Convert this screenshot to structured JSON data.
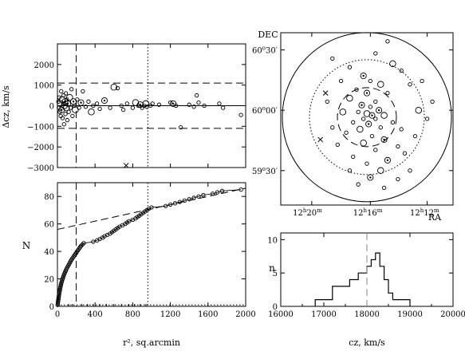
{
  "colors": {
    "ink": "#000000",
    "reference": "#888888"
  },
  "chart_data": [
    {
      "id": "velocity_offset",
      "type": "scatter",
      "xlabel": "",
      "ylabel": "Δcz, km/s",
      "xlim": [
        0,
        2000
      ],
      "ylim": [
        -3000,
        3000
      ],
      "yticks": [
        -3000,
        -2000,
        -1000,
        0,
        1000,
        2000
      ],
      "ytick_labels": [
        "−3000",
        "−2000",
        "−1000",
        "0",
        "1000",
        "2000"
      ],
      "xticks": [
        0,
        400,
        800,
        1200,
        1600,
        2000
      ],
      "hlines": [
        {
          "y": 1100,
          "style": "dashed"
        },
        {
          "y": 0,
          "style": "solid"
        },
        {
          "y": -1100,
          "style": "dashed"
        }
      ],
      "vlines": [
        {
          "x": 200,
          "style": "dashed"
        },
        {
          "x": 960,
          "style": "dotted"
        }
      ],
      "points": [
        {
          "x": 10,
          "y": 200,
          "m": "o"
        },
        {
          "x": 15,
          "y": -100,
          "m": "o"
        },
        {
          "x": 20,
          "y": 400,
          "m": "o"
        },
        {
          "x": 25,
          "y": -300,
          "m": "o"
        },
        {
          "x": 30,
          "y": 100,
          "m": "O"
        },
        {
          "x": 35,
          "y": -500,
          "m": "o"
        },
        {
          "x": 40,
          "y": 700,
          "m": "o"
        },
        {
          "x": 45,
          "y": -200,
          "m": "@"
        },
        {
          "x": 50,
          "y": 300,
          "m": "O"
        },
        {
          "x": 55,
          "y": -600,
          "m": "o"
        },
        {
          "x": 60,
          "y": 100,
          "m": "o"
        },
        {
          "x": 65,
          "y": 500,
          "m": "o"
        },
        {
          "x": 70,
          "y": -900,
          "m": "o"
        },
        {
          "x": 75,
          "y": 0,
          "m": "O"
        },
        {
          "x": 80,
          "y": 200,
          "m": "@"
        },
        {
          "x": 85,
          "y": -400,
          "m": "o"
        },
        {
          "x": 90,
          "y": 600,
          "m": "o"
        },
        {
          "x": 95,
          "y": -100,
          "m": "O"
        },
        {
          "x": 100,
          "y": 300,
          "m": "o"
        },
        {
          "x": 105,
          "y": -700,
          "m": "o"
        },
        {
          "x": 110,
          "y": 100,
          "m": "@"
        },
        {
          "x": 120,
          "y": -300,
          "m": "o"
        },
        {
          "x": 130,
          "y": 400,
          "m": "O"
        },
        {
          "x": 140,
          "y": -100,
          "m": "o"
        },
        {
          "x": 150,
          "y": 800,
          "m": "o"
        },
        {
          "x": 160,
          "y": -500,
          "m": "o"
        },
        {
          "x": 170,
          "y": 200,
          "m": "@"
        },
        {
          "x": 180,
          "y": 0,
          "m": "o"
        },
        {
          "x": 190,
          "y": -200,
          "m": "O"
        },
        {
          "x": 210,
          "y": 300,
          "m": "o"
        },
        {
          "x": 230,
          "y": -100,
          "m": "o"
        },
        {
          "x": 250,
          "y": 150,
          "m": "@"
        },
        {
          "x": 270,
          "y": 700,
          "m": "o"
        },
        {
          "x": 300,
          "y": -50,
          "m": "o"
        },
        {
          "x": 330,
          "y": 200,
          "m": "o"
        },
        {
          "x": 360,
          "y": -300,
          "m": "O"
        },
        {
          "x": 380,
          "y": 0,
          "m": "o"
        },
        {
          "x": 420,
          "y": 100,
          "m": "o"
        },
        {
          "x": 450,
          "y": -150,
          "m": "o"
        },
        {
          "x": 500,
          "y": 250,
          "m": "@"
        },
        {
          "x": 560,
          "y": -100,
          "m": "o"
        },
        {
          "x": 600,
          "y": 900,
          "m": "O"
        },
        {
          "x": 640,
          "y": 850,
          "m": "o"
        },
        {
          "x": 680,
          "y": 0,
          "m": "o"
        },
        {
          "x": 700,
          "y": -200,
          "m": "o"
        },
        {
          "x": 740,
          "y": 100,
          "m": "o"
        },
        {
          "x": 800,
          "y": -100,
          "m": "o"
        },
        {
          "x": 830,
          "y": 150,
          "m": "O"
        },
        {
          "x": 860,
          "y": 0,
          "m": "o"
        },
        {
          "x": 880,
          "y": 50,
          "m": "@"
        },
        {
          "x": 900,
          "y": -100,
          "m": "o"
        },
        {
          "x": 920,
          "y": 0,
          "m": "o"
        },
        {
          "x": 940,
          "y": 100,
          "m": "O"
        },
        {
          "x": 950,
          "y": -50,
          "m": "o"
        },
        {
          "x": 990,
          "y": 0,
          "m": "o"
        },
        {
          "x": 1010,
          "y": 100,
          "m": "o"
        },
        {
          "x": 1080,
          "y": 50,
          "m": "o"
        },
        {
          "x": 1200,
          "y": 150,
          "m": "o"
        },
        {
          "x": 1230,
          "y": 100,
          "m": "@"
        },
        {
          "x": 1260,
          "y": 0,
          "m": "o"
        },
        {
          "x": 1400,
          "y": 50,
          "m": "o"
        },
        {
          "x": 1450,
          "y": -50,
          "m": "o"
        },
        {
          "x": 1480,
          "y": 500,
          "m": "o"
        },
        {
          "x": 1500,
          "y": 150,
          "m": "o"
        },
        {
          "x": 1560,
          "y": 0,
          "m": "o"
        },
        {
          "x": 1720,
          "y": 100,
          "m": "o"
        },
        {
          "x": 1760,
          "y": -100,
          "m": "o"
        },
        {
          "x": 1950,
          "y": -450,
          "m": "o"
        },
        {
          "x": 1310,
          "y": -1050,
          "m": "o"
        },
        {
          "x": 730,
          "y": -2900,
          "m": "x"
        }
      ]
    },
    {
      "id": "sky_map",
      "type": "scatter",
      "xlabel": "RA",
      "ylabel": "DEC",
      "xtick_labels": [
        {
          "h": "12",
          "m": "20"
        },
        {
          "h": "12",
          "m": "16"
        },
        {
          "h": "12",
          "m": "12"
        }
      ],
      "ytick_labels": [
        {
          "deg": "60",
          "min": "30"
        },
        {
          "deg": "60",
          "min": "00"
        },
        {
          "deg": "59",
          "min": "30"
        }
      ],
      "rings": [
        "solid",
        "dotted",
        "dashed"
      ],
      "points": [
        {
          "x": 0.62,
          "y": 0.05,
          "m": "o"
        },
        {
          "x": 0.55,
          "y": 0.12,
          "m": "o"
        },
        {
          "x": 0.3,
          "y": 0.15,
          "m": "o"
        },
        {
          "x": 0.4,
          "y": 0.2,
          "m": "o"
        },
        {
          "x": 0.65,
          "y": 0.18,
          "m": "O"
        },
        {
          "x": 0.7,
          "y": 0.22,
          "m": "o"
        },
        {
          "x": 0.48,
          "y": 0.25,
          "m": "@"
        },
        {
          "x": 0.52,
          "y": 0.28,
          "m": "o"
        },
        {
          "x": 0.58,
          "y": 0.3,
          "m": "O"
        },
        {
          "x": 0.35,
          "y": 0.28,
          "m": "o"
        },
        {
          "x": 0.75,
          "y": 0.3,
          "m": "o"
        },
        {
          "x": 0.44,
          "y": 0.33,
          "m": "o"
        },
        {
          "x": 0.5,
          "y": 0.35,
          "m": "@"
        },
        {
          "x": 0.62,
          "y": 0.35,
          "m": "o"
        },
        {
          "x": 0.4,
          "y": 0.38,
          "m": "O"
        },
        {
          "x": 0.55,
          "y": 0.4,
          "m": "o"
        },
        {
          "x": 0.47,
          "y": 0.42,
          "m": "@"
        },
        {
          "x": 0.52,
          "y": 0.43,
          "m": "o"
        },
        {
          "x": 0.57,
          "y": 0.45,
          "m": "@"
        },
        {
          "x": 0.45,
          "y": 0.46,
          "m": "o"
        },
        {
          "x": 0.5,
          "y": 0.47,
          "m": "O"
        },
        {
          "x": 0.53,
          "y": 0.48,
          "m": "@"
        },
        {
          "x": 0.48,
          "y": 0.5,
          "m": "o"
        },
        {
          "x": 0.55,
          "y": 0.5,
          "m": "o"
        },
        {
          "x": 0.6,
          "y": 0.48,
          "m": "O"
        },
        {
          "x": 0.42,
          "y": 0.52,
          "m": "o"
        },
        {
          "x": 0.51,
          "y": 0.53,
          "m": "@"
        },
        {
          "x": 0.58,
          "y": 0.55,
          "m": "o"
        },
        {
          "x": 0.46,
          "y": 0.56,
          "m": "O"
        },
        {
          "x": 0.65,
          "y": 0.52,
          "m": "o"
        },
        {
          "x": 0.7,
          "y": 0.56,
          "m": "o"
        },
        {
          "x": 0.38,
          "y": 0.58,
          "m": "o"
        },
        {
          "x": 0.53,
          "y": 0.6,
          "m": "o"
        },
        {
          "x": 0.6,
          "y": 0.62,
          "m": "@"
        },
        {
          "x": 0.48,
          "y": 0.64,
          "m": "O"
        },
        {
          "x": 0.68,
          "y": 0.66,
          "m": "o"
        },
        {
          "x": 0.55,
          "y": 0.68,
          "m": "o"
        },
        {
          "x": 0.72,
          "y": 0.7,
          "m": "o"
        },
        {
          "x": 0.42,
          "y": 0.72,
          "m": "o"
        },
        {
          "x": 0.62,
          "y": 0.74,
          "m": "@"
        },
        {
          "x": 0.5,
          "y": 0.76,
          "m": "o"
        },
        {
          "x": 0.78,
          "y": 0.6,
          "m": "o"
        },
        {
          "x": 0.8,
          "y": 0.45,
          "m": "O"
        },
        {
          "x": 0.85,
          "y": 0.5,
          "m": "o"
        },
        {
          "x": 0.27,
          "y": 0.4,
          "m": "o"
        },
        {
          "x": 0.3,
          "y": 0.55,
          "m": "o"
        },
        {
          "x": 0.33,
          "y": 0.65,
          "m": "o"
        },
        {
          "x": 0.58,
          "y": 0.8,
          "m": "O"
        },
        {
          "x": 0.52,
          "y": 0.84,
          "m": "@"
        },
        {
          "x": 0.45,
          "y": 0.88,
          "m": "o"
        },
        {
          "x": 0.75,
          "y": 0.8,
          "m": "o"
        },
        {
          "x": 0.68,
          "y": 0.85,
          "m": "o"
        },
        {
          "x": 0.6,
          "y": 0.9,
          "m": "o"
        },
        {
          "x": 0.4,
          "y": 0.8,
          "m": "o"
        },
        {
          "x": 0.88,
          "y": 0.4,
          "m": "o"
        },
        {
          "x": 0.82,
          "y": 0.28,
          "m": "o"
        },
        {
          "x": 0.36,
          "y": 0.46,
          "m": "O"
        },
        {
          "x": 0.26,
          "y": 0.35,
          "m": "x"
        },
        {
          "x": 0.23,
          "y": 0.62,
          "m": "x"
        }
      ]
    },
    {
      "id": "cumulative_counts",
      "type": "scatter",
      "xlabel": "r², sq.arcmin",
      "ylabel": "N",
      "xlim": [
        0,
        2000
      ],
      "ylim": [
        0,
        90
      ],
      "xticks": [
        0,
        400,
        800,
        1200,
        1600,
        2000
      ],
      "yticks": [
        0,
        20,
        40,
        60,
        80
      ],
      "fit_line": {
        "x": [
          0,
          2000
        ],
        "y": [
          56,
          86
        ],
        "style": "dashed"
      },
      "vlines": [
        {
          "x": 200,
          "style": "dashed"
        },
        {
          "x": 960,
          "style": "dotted"
        }
      ],
      "baseline": {
        "y": 1,
        "style": "dotted"
      },
      "cumulative_x": [
        2,
        4,
        6,
        8,
        10,
        12,
        14,
        16,
        18,
        20,
        23,
        26,
        29,
        32,
        35,
        38,
        42,
        46,
        50,
        55,
        60,
        65,
        70,
        76,
        82,
        88,
        95,
        102,
        110,
        118,
        126,
        134,
        142,
        150,
        160,
        170,
        180,
        190,
        200,
        210,
        220,
        230,
        240,
        250,
        265,
        280,
        380,
        420,
        450,
        480,
        500,
        530,
        560,
        580,
        600,
        620,
        640,
        660,
        690,
        720,
        740,
        760,
        800,
        830,
        850,
        870,
        890,
        910,
        930,
        950,
        970,
        1000,
        1150,
        1200,
        1250,
        1300,
        1350,
        1400,
        1450,
        1500,
        1550,
        1650,
        1700,
        1750,
        1950
      ],
      "ticks_at_zero": [
        120,
        160,
        260,
        320,
        380,
        450,
        520,
        600,
        680,
        760,
        820,
        880,
        940
      ]
    },
    {
      "id": "velocity_histogram",
      "type": "bar",
      "xlabel": "cz, km/s",
      "ylabel": "n",
      "xlim": [
        16000,
        20000
      ],
      "ylim": [
        0,
        11
      ],
      "xticks": [
        16000,
        17000,
        18000,
        19000,
        20000
      ],
      "yticks": [
        0,
        5,
        10
      ],
      "bin_edges": [
        16800,
        17200,
        17600,
        17800,
        18000,
        18100,
        18200,
        18300,
        18400,
        18500,
        18600,
        19000
      ],
      "counts": [
        1,
        3,
        4,
        5,
        6,
        7,
        8,
        6,
        4,
        2,
        1
      ],
      "reference_line": {
        "x": 18000,
        "style": "dashed"
      }
    }
  ],
  "panel_labels": {
    "tl_y": "Δcz, km/s",
    "bl_x": "r², sq.arcmin",
    "bl_y": "N",
    "tr_x": "RA",
    "tr_y": "DEC",
    "br_x": "cz, km/s",
    "br_y": "n"
  }
}
